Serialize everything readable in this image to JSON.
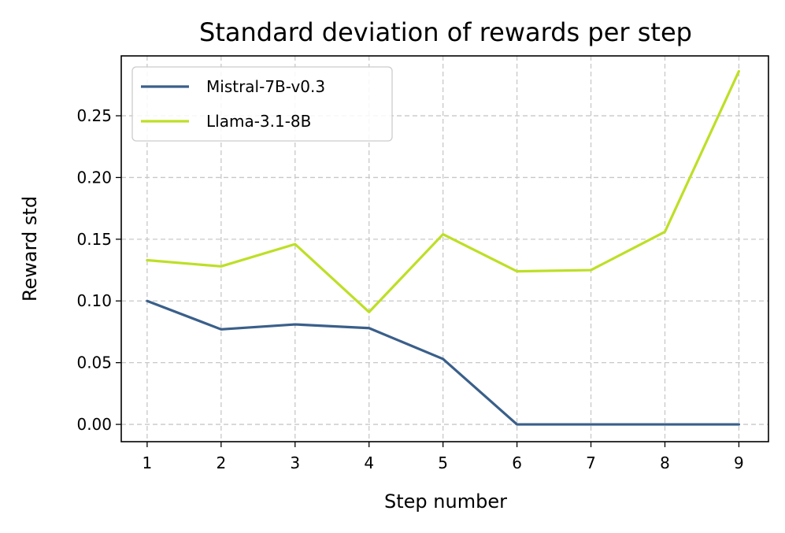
{
  "chart_data": {
    "type": "line",
    "title": "Standard deviation of rewards per step",
    "xlabel": "Step number",
    "ylabel": "Reward std",
    "x": [
      1,
      2,
      3,
      4,
      5,
      6,
      7,
      8,
      9
    ],
    "xlim": [
      0.65,
      9.4
    ],
    "ylim": [
      -0.014,
      0.2985
    ],
    "xticks": [
      "1",
      "2",
      "3",
      "4",
      "5",
      "6",
      "7",
      "8",
      "9"
    ],
    "yticks": [
      0.0,
      0.05,
      0.1,
      0.15,
      0.2,
      0.25
    ],
    "ytick_labels": [
      "0.00",
      "0.05",
      "0.10",
      "0.15",
      "0.20",
      "0.25"
    ],
    "grid": true,
    "legend_position": "top-left",
    "series": [
      {
        "name": "Mistral-7B-v0.3",
        "color": "#3a5f8a",
        "values": [
          0.1,
          0.077,
          0.081,
          0.078,
          0.053,
          0.0,
          0.0,
          0.0,
          0.0
        ]
      },
      {
        "name": "Llama-3.1-8B",
        "color": "#bddf26",
        "values": [
          0.133,
          0.128,
          0.146,
          0.091,
          0.154,
          0.124,
          0.125,
          0.156,
          0.286
        ]
      }
    ]
  }
}
